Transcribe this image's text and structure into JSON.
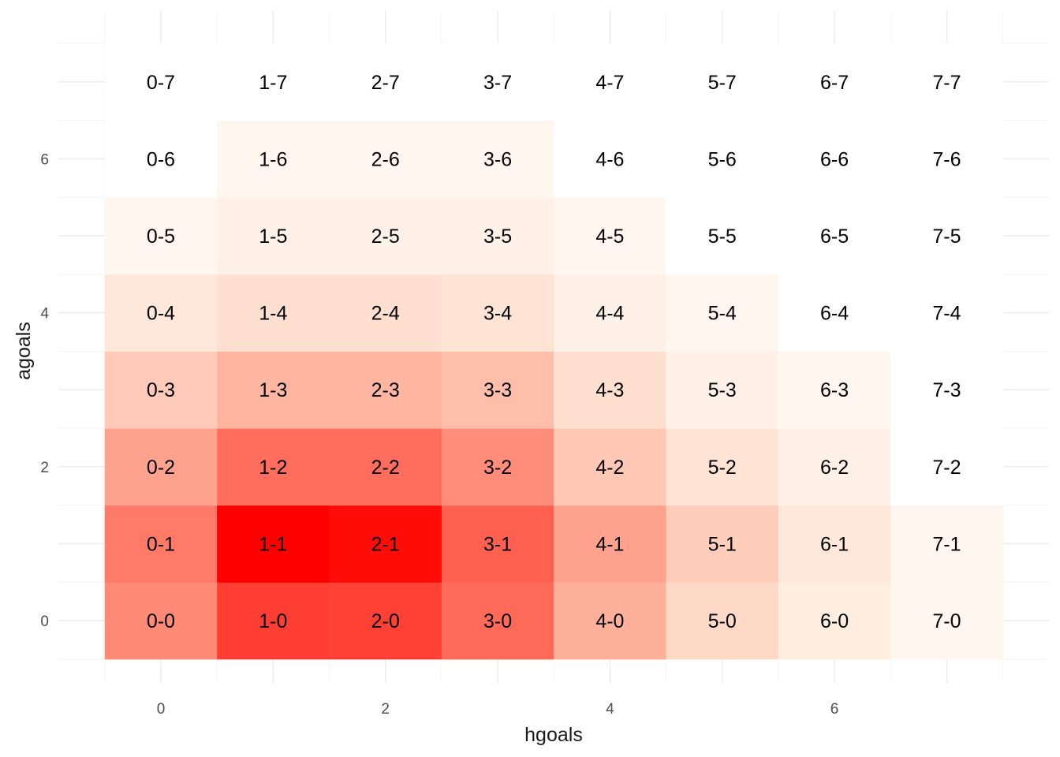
{
  "chart_data": {
    "type": "heatmap",
    "xlabel": "hgoals",
    "ylabel": "agoals",
    "x_values": [
      0,
      1,
      2,
      3,
      4,
      5,
      6,
      7
    ],
    "y_values": [
      0,
      1,
      2,
      3,
      4,
      5,
      6,
      7
    ],
    "x_ticks": [
      "0",
      "2",
      "4",
      "6"
    ],
    "y_ticks": [
      "0",
      "2",
      "4",
      "6"
    ],
    "xlim": [
      -0.5,
      7.5
    ],
    "ylim": [
      -0.5,
      7.5
    ],
    "grid": true,
    "legend": "none",
    "color_low": "#ffffff",
    "color_high": "#ff0000",
    "cell_labels_format": "hgoals-agoals",
    "intensity_scale": "relative (0 = white, 1 = pure red)",
    "intensity": [
      [
        0.35,
        0.69,
        0.68,
        0.49,
        0.21,
        0.08,
        0.03,
        0.01
      ],
      [
        0.42,
        1.0,
        0.94,
        0.53,
        0.26,
        0.11,
        0.04,
        0.01
      ],
      [
        0.26,
        0.47,
        0.47,
        0.34,
        0.13,
        0.05,
        0.02,
        0.0
      ],
      [
        0.12,
        0.19,
        0.19,
        0.16,
        0.06,
        0.02,
        0.01,
        0.0
      ],
      [
        0.04,
        0.06,
        0.06,
        0.05,
        0.02,
        0.01,
        0.0,
        0.0
      ],
      [
        0.01,
        0.02,
        0.02,
        0.02,
        0.01,
        0.0,
        0.0,
        0.0
      ],
      [
        0.0,
        0.01,
        0.01,
        0.01,
        0.0,
        0.0,
        0.0,
        0.0
      ],
      [
        0.0,
        0.0,
        0.0,
        0.0,
        0.0,
        0.0,
        0.0,
        0.0
      ]
    ]
  }
}
